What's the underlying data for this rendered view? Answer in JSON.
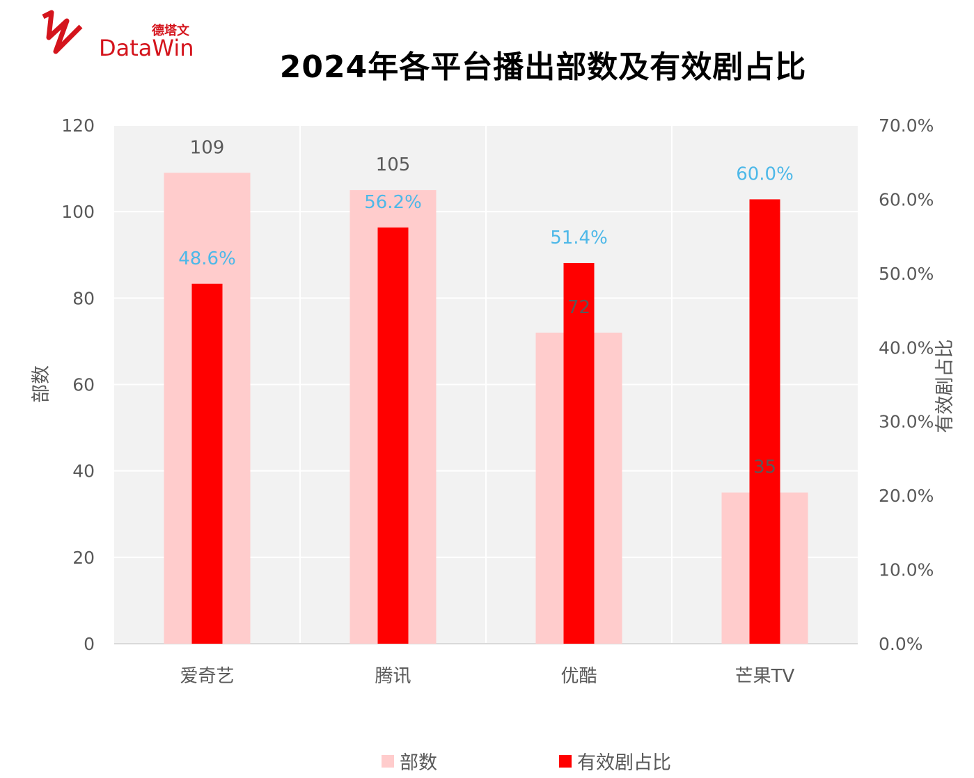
{
  "logo": {
    "cn": "德塔文",
    "en": "DataWin"
  },
  "chart_data": {
    "type": "bar",
    "title": "2024年各平台播出部数及有效剧占比",
    "categories": [
      "爱奇艺",
      "腾讯",
      "优酷",
      "芒果TV"
    ],
    "series": [
      {
        "name": "部数",
        "axis": "left",
        "values": [
          109,
          105,
          72,
          35
        ],
        "labels": [
          "109",
          "105",
          "72",
          "35"
        ],
        "color": "#ffcccc"
      },
      {
        "name": "有效剧占比",
        "axis": "right",
        "values": [
          48.6,
          56.2,
          51.4,
          60.0
        ],
        "labels": [
          "48.6%",
          "56.2%",
          "51.4%",
          "60.0%"
        ],
        "color": "#ff0000"
      }
    ],
    "ylabel": "部数",
    "y2label": "有效剧占比",
    "ylim": [
      0,
      120
    ],
    "y2lim": [
      0,
      70
    ],
    "yticks": [
      "0",
      "20",
      "40",
      "60",
      "80",
      "100",
      "120"
    ],
    "y2ticks": [
      "0.0%",
      "10.0%",
      "20.0%",
      "30.0%",
      "40.0%",
      "50.0%",
      "60.0%",
      "70.0%"
    ],
    "grid": true,
    "legend": "bottom",
    "colors": {
      "plot_bg": "#f2f2f2",
      "grid": "#ffffff",
      "tick_text": "#595959",
      "pct_label": "#4db8e8",
      "count_label": "#595959"
    }
  }
}
